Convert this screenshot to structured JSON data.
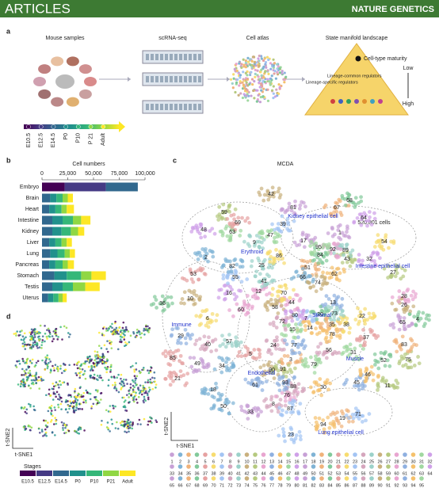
{
  "header": {
    "section": "ARTICLES",
    "journal": "NATURE GENETICS"
  },
  "panel_a": {
    "label": "a",
    "steps": [
      "Mouse samples",
      "scRNA-seq",
      "Cell atlas",
      "State manifold landscape"
    ],
    "maturity": {
      "title": "Cell-type maturity",
      "low": "Low",
      "high": "High"
    },
    "annotations": [
      "Lineage-common regulators",
      "Lineage-specific regulators"
    ],
    "stages": [
      "E10.5",
      "E12.5",
      "E14.5",
      "P0",
      "P10",
      "P 21",
      "Adult"
    ]
  },
  "chart_data": {
    "type": "bar",
    "orientation": "horizontal",
    "stacked": true,
    "label": "b",
    "title": "Cell numbers",
    "categories": [
      "Embryo",
      "Brain",
      "Heart",
      "Intestine",
      "Kidney",
      "Liver",
      "Lung",
      "Pancreas",
      "Stomach",
      "Testis",
      "Uterus"
    ],
    "series": [
      {
        "name": "E10.5",
        "color": "#440154",
        "values": [
          22000,
          0,
          0,
          0,
          0,
          0,
          0,
          0,
          0,
          0,
          0
        ]
      },
      {
        "name": "E12.5",
        "color": "#453a84",
        "values": [
          40000,
          0,
          0,
          0,
          0,
          0,
          0,
          0,
          0,
          0,
          0
        ]
      },
      {
        "name": "E14.5",
        "color": "#31688e",
        "values": [
          31000,
          8000,
          7000,
          10000,
          10000,
          7000,
          8000,
          7000,
          12000,
          10000,
          6000
        ]
      },
      {
        "name": "P0",
        "color": "#21918c",
        "values": [
          0,
          6000,
          6000,
          10000,
          9000,
          6000,
          7000,
          6000,
          12000,
          10000,
          5000
        ]
      },
      {
        "name": "P10",
        "color": "#35b779",
        "values": [
          0,
          6000,
          6000,
          10000,
          9000,
          6000,
          7000,
          7000,
          14000,
          10000,
          5000
        ]
      },
      {
        "name": "P21",
        "color": "#90d743",
        "values": [
          0,
          5000,
          5000,
          8000,
          7000,
          5000,
          5000,
          5000,
          10000,
          12000,
          4000
        ]
      },
      {
        "name": "Adult",
        "color": "#fde725",
        "values": [
          0,
          5000,
          7000,
          9000,
          6000,
          5000,
          5000,
          6000,
          14000,
          14000,
          4000
        ]
      }
    ],
    "xlim": [
      0,
      100000
    ],
    "xticks": [
      0,
      {
        "value": 25000,
        "label": "25,000"
      },
      {
        "value": 50000,
        "label": "50,000"
      },
      {
        "value": 75000,
        "label": "75,000"
      },
      {
        "value": 100000,
        "label": "100,000"
      }
    ]
  },
  "panel_c": {
    "label": "c",
    "title": "MCDA",
    "cell_count": "520,801 cells",
    "x_label": "t-SNE1",
    "y_label": "t-SNE2",
    "systems": [
      "Kidney epithelial cell",
      "Erythroid",
      "Intestine epithelial cell",
      "Stromal",
      "Immune",
      "Muscle",
      "Endothelial",
      "Lung epithelial cell"
    ],
    "clusters": [
      "1",
      "2",
      "3",
      "4",
      "5",
      "6",
      "7",
      "8",
      "9",
      "10",
      "11",
      "12",
      "13",
      "14",
      "15",
      "16",
      "17",
      "18",
      "19",
      "20",
      "21",
      "22",
      "23",
      "24",
      "25",
      "26",
      "27",
      "28",
      "29",
      "30",
      "31",
      "32",
      "33",
      "34",
      "35",
      "36",
      "37",
      "38",
      "39",
      "40",
      "41",
      "42",
      "43",
      "44",
      "45",
      "46",
      "47",
      "48",
      "49",
      "50",
      "51",
      "52",
      "53",
      "54",
      "55",
      "56",
      "57",
      "58",
      "59",
      "60",
      "61",
      "62",
      "63",
      "64",
      "65",
      "66",
      "67",
      "68",
      "69",
      "70",
      "71",
      "72",
      "73",
      "74",
      "75",
      "76",
      "77",
      "78",
      "79",
      "80",
      "81",
      "82",
      "83",
      "84",
      "85",
      "86",
      "87",
      "88",
      "89",
      "90",
      "91",
      "92",
      "93",
      "94",
      "95"
    ],
    "cluster_colors": [
      "#c7a0d6",
      "#7fb3d5",
      "#f0b27a",
      "#82c99a",
      "#e6a1a1",
      "#f7dc6f",
      "#a3c4f3",
      "#d5a6bd",
      "#9bd1c9",
      "#c9b07d",
      "#b5c97f",
      "#e8a5d0",
      "#8fb0e0",
      "#f5c16c",
      "#a0d8a0",
      "#cfa0e8",
      "#c7a0d6",
      "#7fb3d5",
      "#f0b27a",
      "#82c99a",
      "#e6a1a1",
      "#f7dc6f",
      "#a3c4f3",
      "#d5a6bd",
      "#9bd1c9",
      "#c9b07d",
      "#b5c97f",
      "#e8a5d0",
      "#8fb0e0",
      "#f5c16c",
      "#a0d8a0",
      "#cfa0e8",
      "#c7a0d6",
      "#7fb3d5",
      "#f0b27a",
      "#82c99a",
      "#e6a1a1",
      "#f7dc6f",
      "#a3c4f3",
      "#d5a6bd",
      "#9bd1c9",
      "#c9b07d",
      "#b5c97f",
      "#e8a5d0",
      "#8fb0e0",
      "#f5c16c",
      "#a0d8a0",
      "#cfa0e8",
      "#c7a0d6",
      "#7fb3d5",
      "#f0b27a",
      "#82c99a",
      "#e6a1a1",
      "#f7dc6f",
      "#a3c4f3",
      "#d5a6bd",
      "#9bd1c9",
      "#c9b07d",
      "#b5c97f",
      "#e8a5d0",
      "#8fb0e0",
      "#f5c16c",
      "#a0d8a0",
      "#cfa0e8",
      "#c7a0d6",
      "#7fb3d5",
      "#f0b27a",
      "#82c99a",
      "#e6a1a1",
      "#f7dc6f",
      "#a3c4f3",
      "#d5a6bd",
      "#9bd1c9",
      "#c9b07d",
      "#b5c97f",
      "#e8a5d0",
      "#8fb0e0",
      "#f5c16c",
      "#a0d8a0",
      "#cfa0e8",
      "#c7a0d6",
      "#7fb3d5",
      "#f0b27a",
      "#82c99a",
      "#e6a1a1",
      "#f7dc6f",
      "#a3c4f3",
      "#d5a6bd",
      "#9bd1c9",
      "#c9b07d",
      "#b5c97f",
      "#e8a5d0",
      "#8fb0e0",
      "#f5c16c",
      "#a0d8a0"
    ]
  },
  "panel_d": {
    "label": "d",
    "x_label": "t-SNE1",
    "y_label": "t-SNE2",
    "legend_title": "Stages"
  }
}
